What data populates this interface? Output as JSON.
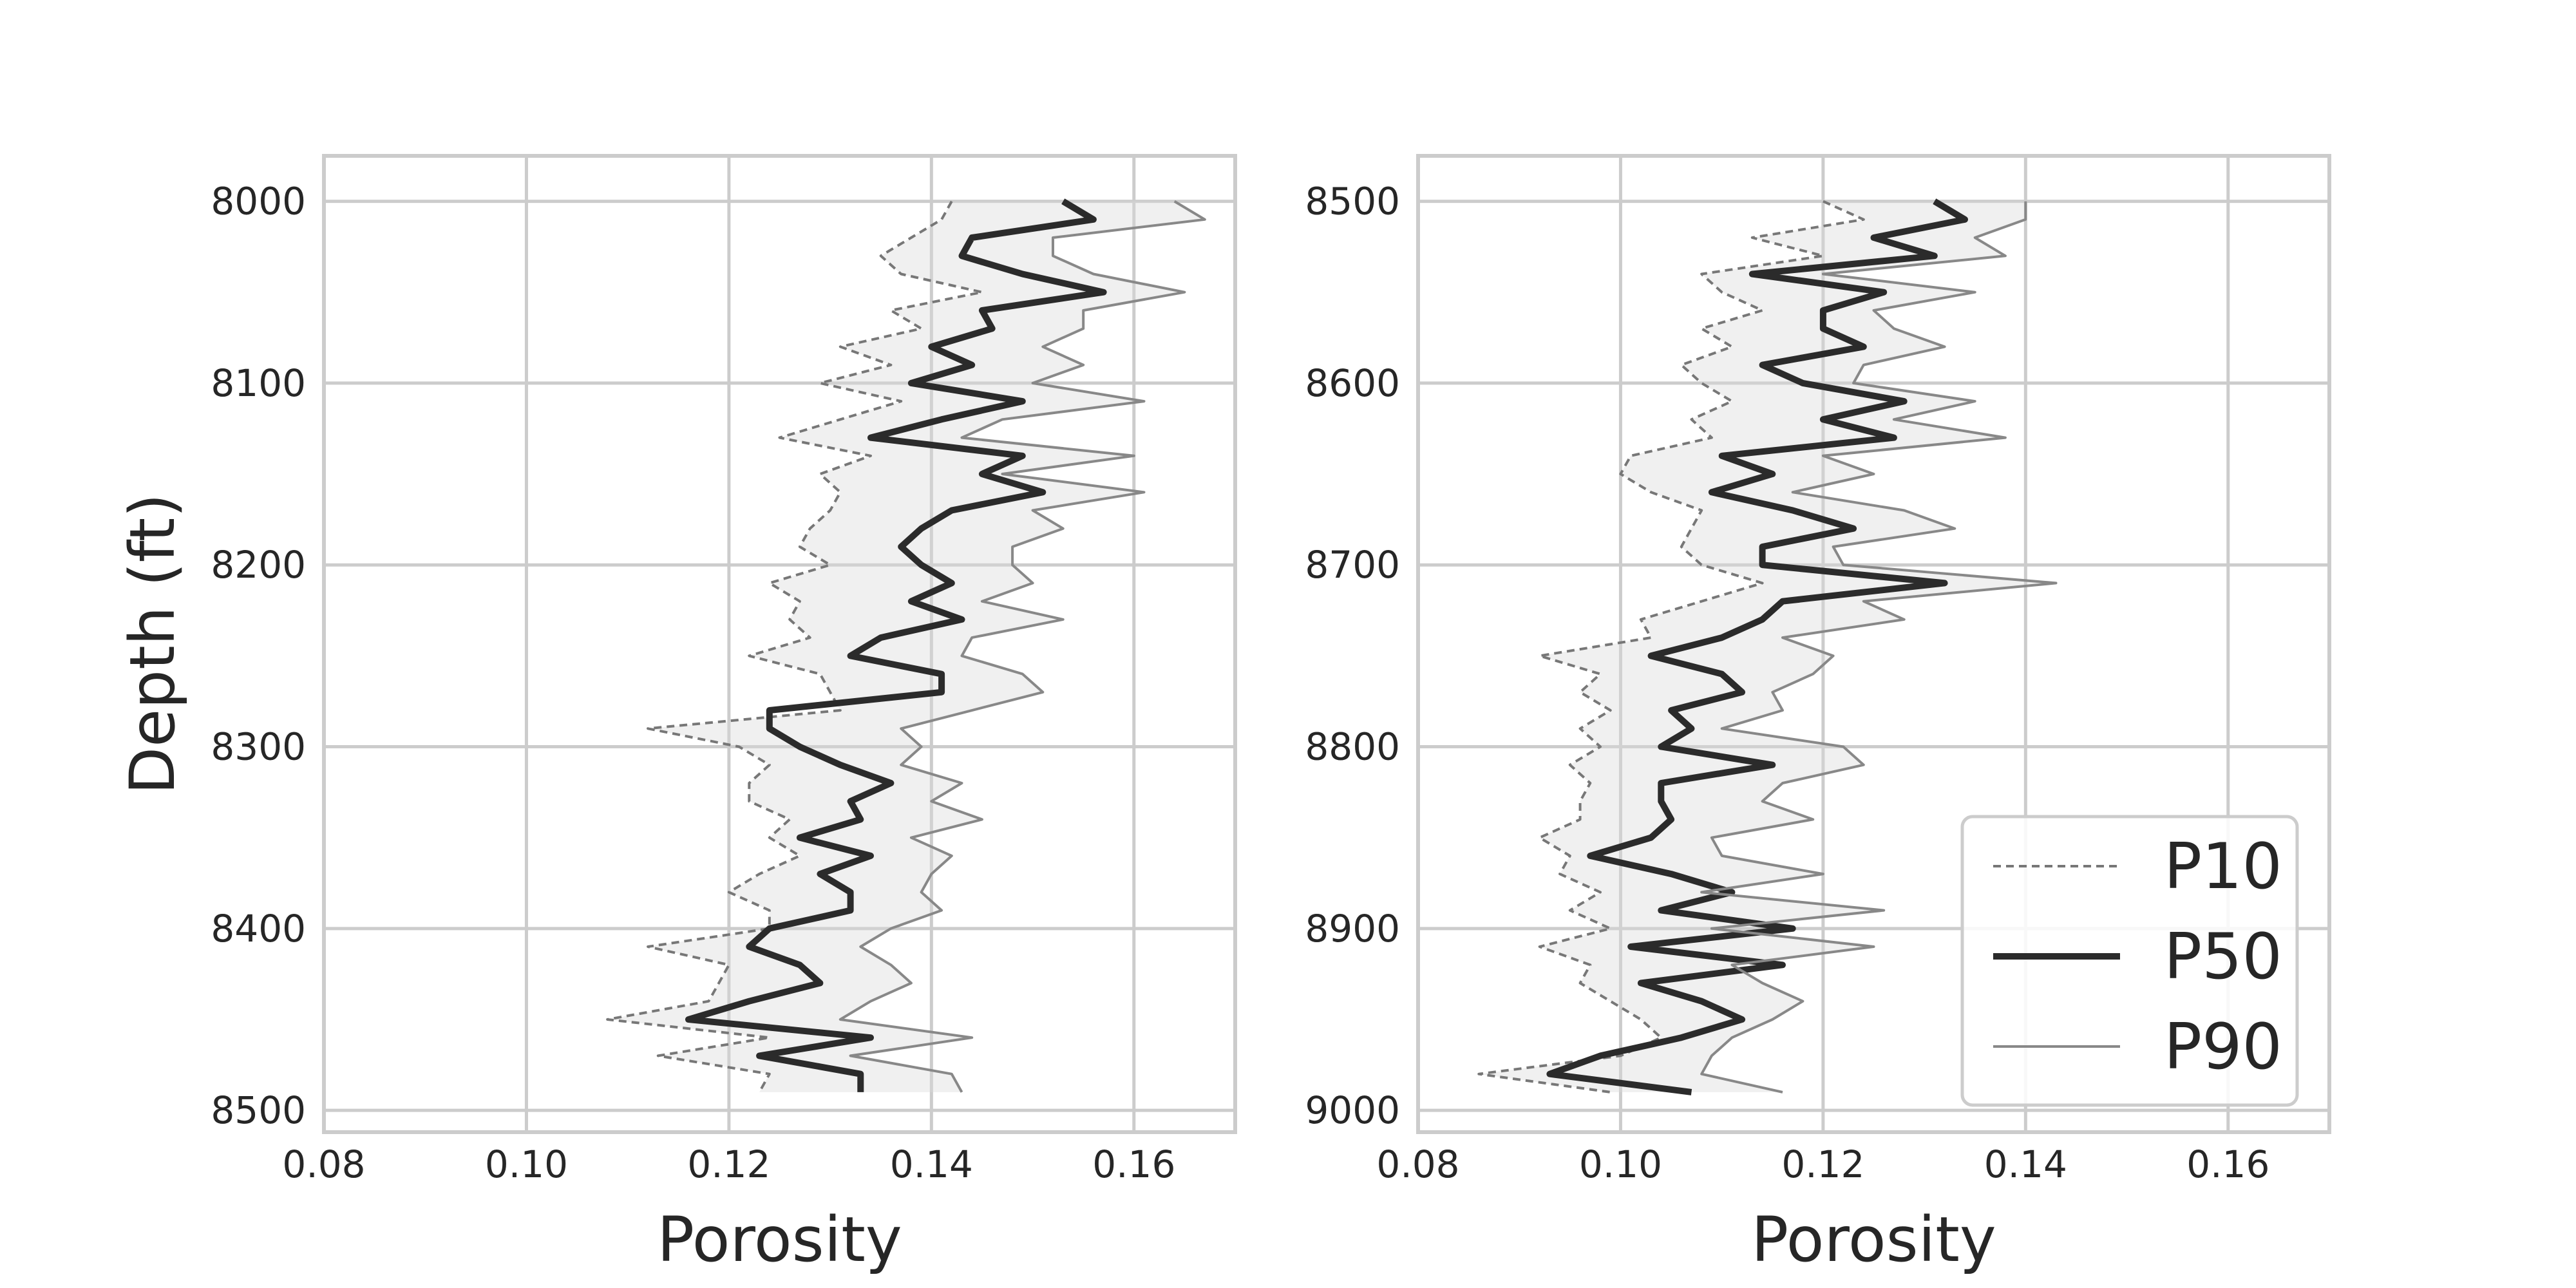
{
  "chart_data": [
    {
      "type": "line",
      "xlabel": "Porosity",
      "ylabel": "Depth (ft)",
      "xlim": [
        0.08,
        0.17
      ],
      "ylim": [
        8512,
        7975
      ],
      "y_inverted": true,
      "xticks": [
        "0.08",
        "0.10",
        "0.12",
        "0.14",
        "0.16"
      ],
      "yticks": [
        "8000",
        "8100",
        "8200",
        "8300",
        "8400",
        "8500"
      ],
      "grid": true,
      "band": "shaded region between P10 and P90",
      "depth": [
        8000,
        8010,
        8020,
        8030,
        8040,
        8050,
        8060,
        8070,
        8080,
        8090,
        8100,
        8110,
        8120,
        8130,
        8140,
        8150,
        8160,
        8170,
        8180,
        8190,
        8200,
        8210,
        8220,
        8230,
        8240,
        8250,
        8260,
        8270,
        8280,
        8290,
        8300,
        8310,
        8320,
        8330,
        8340,
        8350,
        8360,
        8370,
        8380,
        8390,
        8400,
        8410,
        8420,
        8430,
        8440,
        8450,
        8460,
        8470,
        8480,
        8490
      ],
      "series": [
        {
          "name": "P10",
          "values": [
            0.142,
            0.141,
            0.138,
            0.135,
            0.137,
            0.145,
            0.136,
            0.139,
            0.131,
            0.136,
            0.129,
            0.137,
            0.131,
            0.125,
            0.134,
            0.129,
            0.131,
            0.13,
            0.128,
            0.127,
            0.13,
            0.124,
            0.127,
            0.126,
            0.128,
            0.122,
            0.129,
            0.13,
            0.131,
            0.112,
            0.121,
            0.124,
            0.122,
            0.122,
            0.126,
            0.124,
            0.127,
            0.123,
            0.12,
            0.124,
            0.124,
            0.112,
            0.12,
            0.119,
            0.118,
            0.108,
            0.124,
            0.113,
            0.124,
            0.123
          ]
        },
        {
          "name": "P50",
          "values": [
            0.153,
            0.156,
            0.144,
            0.143,
            0.149,
            0.157,
            0.145,
            0.146,
            0.14,
            0.144,
            0.138,
            0.149,
            0.141,
            0.134,
            0.149,
            0.145,
            0.151,
            0.142,
            0.139,
            0.137,
            0.139,
            0.142,
            0.138,
            0.143,
            0.135,
            0.132,
            0.141,
            0.141,
            0.124,
            0.124,
            0.127,
            0.131,
            0.136,
            0.132,
            0.133,
            0.127,
            0.134,
            0.129,
            0.132,
            0.132,
            0.124,
            0.122,
            0.127,
            0.129,
            0.122,
            0.116,
            0.134,
            0.123,
            0.133,
            0.133
          ]
        },
        {
          "name": "P90",
          "values": [
            0.164,
            0.167,
            0.152,
            0.152,
            0.156,
            0.165,
            0.155,
            0.155,
            0.151,
            0.155,
            0.15,
            0.161,
            0.147,
            0.143,
            0.16,
            0.147,
            0.161,
            0.15,
            0.153,
            0.148,
            0.148,
            0.15,
            0.145,
            0.153,
            0.144,
            0.143,
            0.149,
            0.151,
            0.144,
            0.137,
            0.139,
            0.137,
            0.143,
            0.14,
            0.145,
            0.138,
            0.142,
            0.14,
            0.139,
            0.141,
            0.136,
            0.133,
            0.136,
            0.138,
            0.134,
            0.131,
            0.144,
            0.132,
            0.142,
            0.143
          ]
        }
      ]
    },
    {
      "type": "line",
      "xlabel": "Porosity",
      "ylabel": "",
      "xlim": [
        0.08,
        0.17
      ],
      "ylim": [
        9012,
        8475
      ],
      "y_inverted": true,
      "xticks": [
        "0.08",
        "0.10",
        "0.12",
        "0.14",
        "0.16"
      ],
      "yticks": [
        "8500",
        "8600",
        "8700",
        "8800",
        "8900",
        "9000"
      ],
      "grid": true,
      "band": "shaded region between P10 and P90",
      "legend_position": "lower-right",
      "legend": [
        "P10",
        "P50",
        "P90"
      ],
      "depth": [
        8500,
        8510,
        8520,
        8530,
        8540,
        8550,
        8560,
        8570,
        8580,
        8590,
        8600,
        8610,
        8620,
        8630,
        8640,
        8650,
        8660,
        8670,
        8680,
        8690,
        8700,
        8710,
        8720,
        8730,
        8740,
        8750,
        8760,
        8770,
        8780,
        8790,
        8800,
        8810,
        8820,
        8830,
        8840,
        8850,
        8860,
        8870,
        8880,
        8890,
        8900,
        8910,
        8920,
        8930,
        8940,
        8950,
        8960,
        8970,
        8980,
        8990
      ],
      "series": [
        {
          "name": "P10",
          "values": [
            0.12,
            0.124,
            0.113,
            0.12,
            0.108,
            0.11,
            0.114,
            0.108,
            0.111,
            0.106,
            0.108,
            0.111,
            0.107,
            0.109,
            0.101,
            0.1,
            0.103,
            0.108,
            0.107,
            0.106,
            0.108,
            0.114,
            0.108,
            0.102,
            0.103,
            0.092,
            0.098,
            0.096,
            0.099,
            0.096,
            0.098,
            0.095,
            0.097,
            0.096,
            0.096,
            0.092,
            0.095,
            0.094,
            0.098,
            0.095,
            0.099,
            0.092,
            0.097,
            0.096,
            0.099,
            0.102,
            0.104,
            0.1,
            0.086,
            0.099
          ]
        },
        {
          "name": "P50",
          "values": [
            0.131,
            0.134,
            0.125,
            0.131,
            0.113,
            0.126,
            0.12,
            0.12,
            0.124,
            0.114,
            0.118,
            0.128,
            0.12,
            0.127,
            0.11,
            0.115,
            0.109,
            0.117,
            0.123,
            0.114,
            0.114,
            0.132,
            0.116,
            0.114,
            0.11,
            0.103,
            0.11,
            0.112,
            0.105,
            0.107,
            0.104,
            0.115,
            0.104,
            0.104,
            0.105,
            0.103,
            0.097,
            0.105,
            0.111,
            0.104,
            0.117,
            0.101,
            0.116,
            0.102,
            0.108,
            0.112,
            0.106,
            0.098,
            0.093,
            0.107
          ]
        },
        {
          "name": "P90",
          "values": [
            0.14,
            0.14,
            0.135,
            0.138,
            0.12,
            0.135,
            0.125,
            0.127,
            0.132,
            0.124,
            0.123,
            0.135,
            0.127,
            0.138,
            0.12,
            0.125,
            0.117,
            0.128,
            0.133,
            0.121,
            0.122,
            0.143,
            0.124,
            0.128,
            0.116,
            0.121,
            0.119,
            0.115,
            0.116,
            0.11,
            0.122,
            0.124,
            0.116,
            0.114,
            0.119,
            0.109,
            0.11,
            0.12,
            0.108,
            0.126,
            0.109,
            0.125,
            0.111,
            0.114,
            0.118,
            0.115,
            0.111,
            0.109,
            0.108,
            0.116
          ]
        }
      ]
    }
  ]
}
